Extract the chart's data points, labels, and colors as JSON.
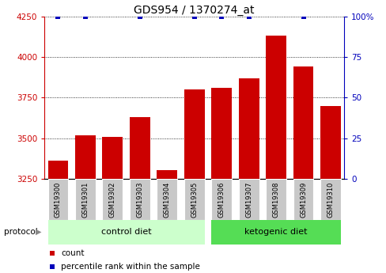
{
  "title": "GDS954 / 1370274_at",
  "samples": [
    "GSM19300",
    "GSM19301",
    "GSM19302",
    "GSM19303",
    "GSM19304",
    "GSM19305",
    "GSM19306",
    "GSM19307",
    "GSM19308",
    "GSM19309",
    "GSM19310"
  ],
  "counts": [
    3360,
    3520,
    3510,
    3630,
    3305,
    3800,
    3810,
    3870,
    4130,
    3940,
    3700
  ],
  "percentile_has_dot": [
    true,
    true,
    false,
    true,
    false,
    true,
    true,
    true,
    false,
    true,
    false
  ],
  "ylim_left": [
    3250,
    4250
  ],
  "ylim_right": [
    0,
    100
  ],
  "yticks_left": [
    3250,
    3500,
    3750,
    4000,
    4250
  ],
  "yticks_right": [
    0,
    25,
    50,
    75,
    100
  ],
  "bar_color": "#cc0000",
  "dot_color": "#0000bb",
  "control_diet_indices": [
    0,
    1,
    2,
    3,
    4,
    5
  ],
  "ketogenic_diet_indices": [
    6,
    7,
    8,
    9,
    10
  ],
  "control_label": "control diet",
  "ketogenic_label": "ketogenic diet",
  "protocol_label": "protocol",
  "legend_count_label": "count",
  "legend_percentile_label": "percentile rank within the sample",
  "tick_bg_color": "#c8c8c8",
  "control_diet_bg": "#ccffcc",
  "ketogenic_diet_bg": "#55dd55",
  "title_fontsize": 10
}
